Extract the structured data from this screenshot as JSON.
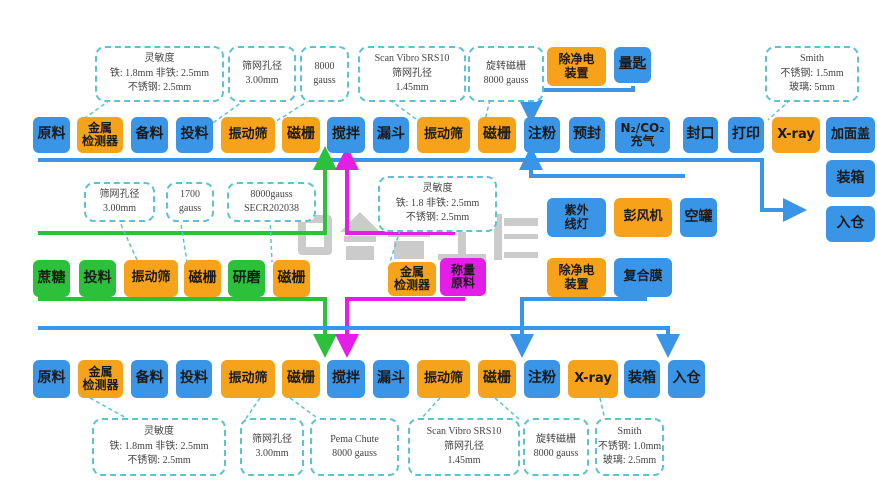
{
  "colors": {
    "blue": "#3a95e6",
    "orange": "#f7a21b",
    "green": "#2cc13b",
    "magenta": "#e41ee6",
    "callout": "#5cc3cf"
  },
  "watermark": "合景工程",
  "top_row": [
    {
      "label": "原料",
      "color": "blue"
    },
    {
      "label": "金属\n检测器",
      "color": "orange"
    },
    {
      "label": "备料",
      "color": "blue"
    },
    {
      "label": "投料",
      "color": "blue"
    },
    {
      "label": "振动筛",
      "color": "orange"
    },
    {
      "label": "磁栅",
      "color": "orange"
    },
    {
      "label": "搅拌",
      "color": "blue"
    },
    {
      "label": "漏斗",
      "color": "blue"
    },
    {
      "label": "振动筛",
      "color": "orange"
    },
    {
      "label": "磁栅",
      "color": "orange"
    },
    {
      "label": "注粉",
      "color": "blue"
    },
    {
      "label": "预封",
      "color": "blue"
    },
    {
      "label": "N₂/CO₂\n充气",
      "color": "blue"
    },
    {
      "label": "封口",
      "color": "blue"
    },
    {
      "label": "打印",
      "color": "blue"
    },
    {
      "label": "X-ray",
      "color": "orange"
    },
    {
      "label": "加面盖",
      "color": "blue"
    }
  ],
  "top_extra": [
    {
      "label": "除净电\n装置",
      "color": "orange"
    },
    {
      "label": "量匙",
      "color": "blue"
    },
    {
      "label": "装箱",
      "color": "blue"
    },
    {
      "label": "入仓",
      "color": "blue"
    }
  ],
  "top_callouts": [
    "灵敏度\n铁: 1.8mm  非铁: 2.5mm\n不锈钢: 2.5mm",
    "筛网孔径\n3.00mm",
    "8000\ngauss",
    "Scan Vibro SRS10\n筛网孔径\n1.45mm",
    "旋转磁栅\n8000 gauss",
    "Smith\n不锈钢: 1.5mm\n玻璃: 5mm"
  ],
  "middle_row": [
    {
      "label": "蔗糖",
      "color": "green"
    },
    {
      "label": "投料",
      "color": "green"
    },
    {
      "label": "振动筛",
      "color": "orange"
    },
    {
      "label": "磁栅",
      "color": "orange"
    },
    {
      "label": "研磨",
      "color": "green"
    },
    {
      "label": "磁栅",
      "color": "orange"
    },
    {
      "label": "金属\n检测器",
      "color": "orange"
    },
    {
      "label": "称量\n原料",
      "color": "magenta"
    },
    {
      "label": "紫外\n线灯",
      "color": "blue"
    },
    {
      "label": "彭风机",
      "color": "orange"
    },
    {
      "label": "空罐",
      "color": "blue"
    },
    {
      "label": "除净电\n装置",
      "color": "orange"
    },
    {
      "label": "复合膜",
      "color": "blue"
    }
  ],
  "middle_callouts": [
    "筛网孔径\n3.00mm",
    "1700\ngauss",
    "8000gauss\nSECR202038",
    "灵敏度\n铁: 1.8  非铁: 2.5mm\n不锈钢: 2.5mm"
  ],
  "bottom_row": [
    {
      "label": "原料",
      "color": "blue"
    },
    {
      "label": "金属\n检测器",
      "color": "orange"
    },
    {
      "label": "备料",
      "color": "blue"
    },
    {
      "label": "投料",
      "color": "blue"
    },
    {
      "label": "振动筛",
      "color": "orange"
    },
    {
      "label": "磁栅",
      "color": "orange"
    },
    {
      "label": "搅拌",
      "color": "blue"
    },
    {
      "label": "漏斗",
      "color": "blue"
    },
    {
      "label": "振动筛",
      "color": "orange"
    },
    {
      "label": "磁栅",
      "color": "orange"
    },
    {
      "label": "注粉",
      "color": "blue"
    },
    {
      "label": "X-ray",
      "color": "orange"
    },
    {
      "label": "装箱",
      "color": "blue"
    },
    {
      "label": "入仓",
      "color": "blue"
    }
  ],
  "bottom_callouts": [
    "灵敏度\n铁: 1.8mm 非铁: 2.5mm\n不锈钢: 2.5mm",
    "筛网孔径\n3.00mm",
    "Pema Chute\n8000 gauss",
    "Scan Vibro SRS10\n筛网孔径\n1.45mm",
    "旋转磁栅\n8000 gauss",
    "Smith\n不锈钢: 1.0mm\n玻璃: 2.5mm"
  ]
}
